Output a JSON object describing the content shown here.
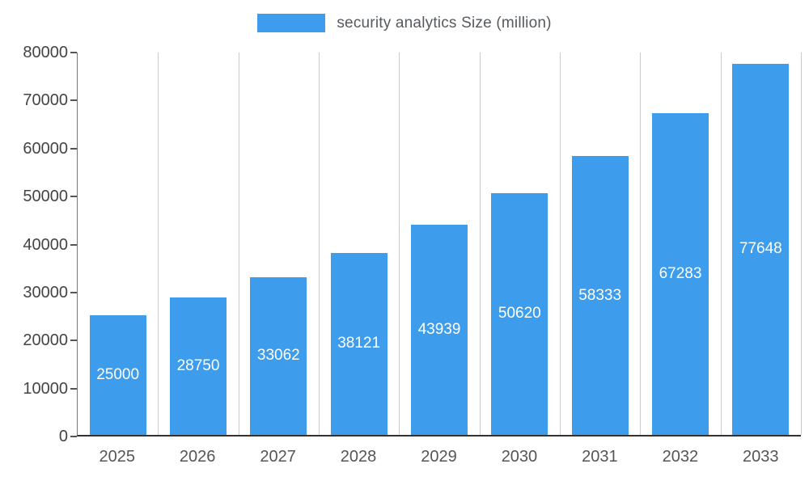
{
  "chart_data": {
    "type": "bar",
    "title": "security analytics Size (million)",
    "categories": [
      "2025",
      "2026",
      "2027",
      "2028",
      "2029",
      "2030",
      "2031",
      "2032",
      "2033"
    ],
    "series": [
      {
        "name": "security analytics Size (million)",
        "values": [
          25000,
          28750,
          33062,
          38121,
          43939,
          50620,
          58333,
          67283,
          77648
        ]
      }
    ],
    "bar_value_labels": [
      "25000",
      "28750",
      "33062",
      "38121",
      "43939",
      "50620",
      "58333",
      "67283",
      "77648"
    ],
    "xlabel": "",
    "ylabel": "",
    "ylim": [
      0,
      80000
    ],
    "yticks": [
      0,
      10000,
      20000,
      30000,
      40000,
      50000,
      60000,
      70000,
      80000
    ],
    "grid": "vertical-only",
    "legend_position": "top-center",
    "colors": {
      "bar": "#3e9cec",
      "bar_value_text": "#ffffff",
      "axis_label_text": "#555555",
      "gridline": "#cccccc",
      "baseline": "#333333"
    }
  }
}
